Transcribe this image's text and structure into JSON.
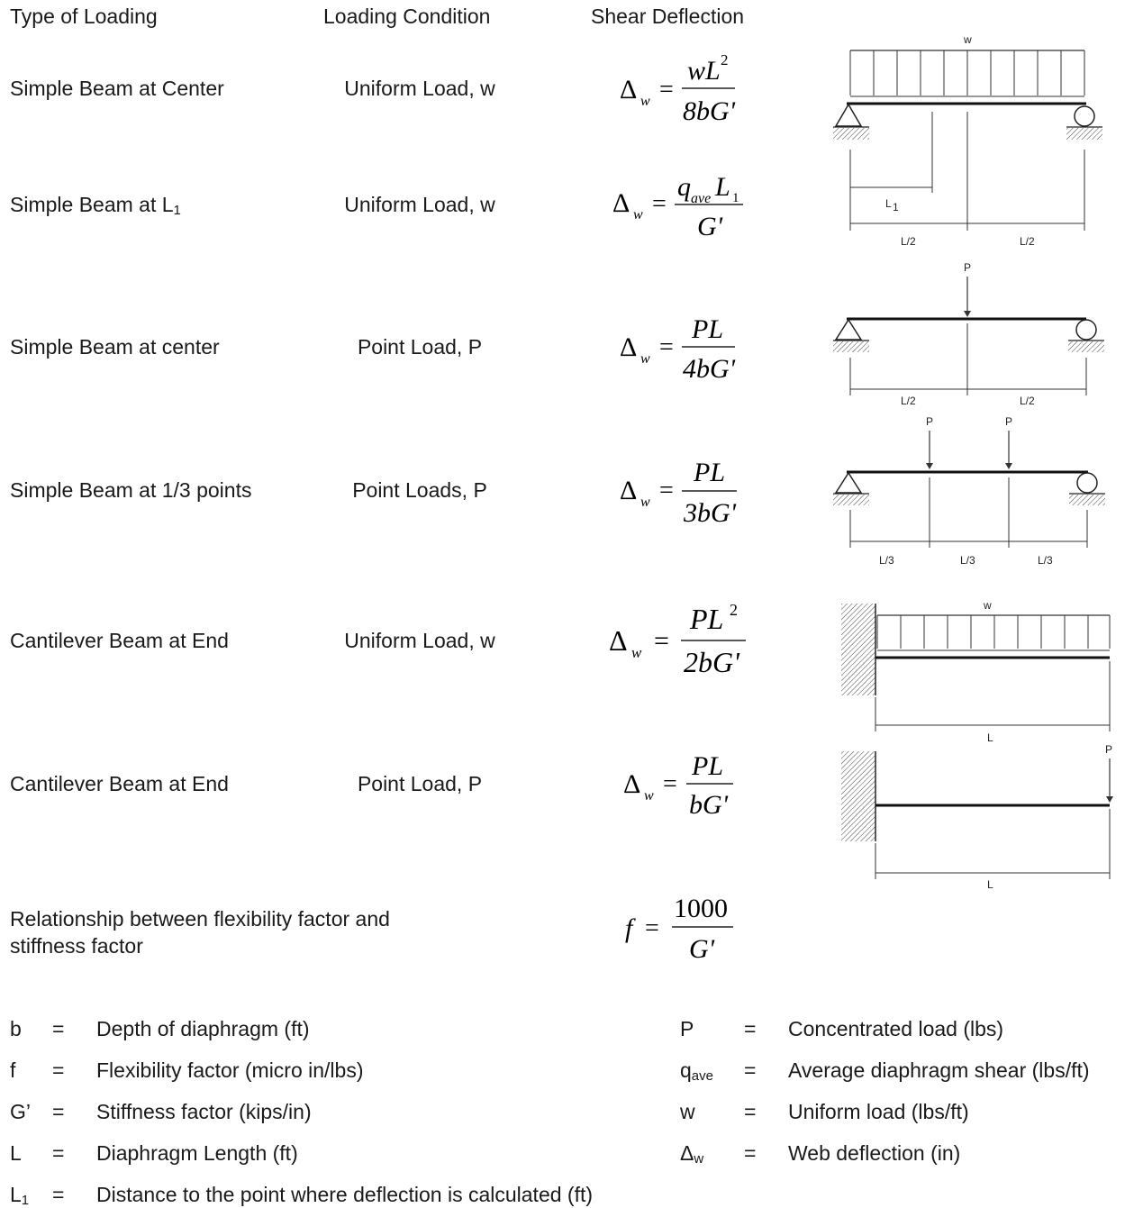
{
  "headers": {
    "type": "Type of Loading",
    "condition": "Loading Condition",
    "deflection": "Shear Deflection"
  },
  "rows": [
    {
      "type": "Simple Beam at Center",
      "condition": "Uniform Load, w",
      "formula": {
        "lhs": "Δ",
        "lhs_sub": "w",
        "num": "wL",
        "num_sup": "2",
        "den": "8bG'"
      }
    },
    {
      "type_main": "Simple Beam at L",
      "type_sub": "1",
      "condition": "Uniform Load, w",
      "formula": {
        "lhs": "Δ",
        "lhs_sub": "w",
        "num": "q",
        "num_sub": "ave",
        "num_tail": "L",
        "num_tail_sub": "1",
        "den": "G'"
      }
    },
    {
      "type": "Simple Beam at center",
      "condition": "Point Load, P",
      "formula": {
        "lhs": "Δ",
        "lhs_sub": "w",
        "num": "PL",
        "den": "4bG'"
      }
    },
    {
      "type": "Simple Beam at 1/3 points",
      "condition": "Point Loads, P",
      "formula": {
        "lhs": "Δ",
        "lhs_sub": "w",
        "num": "PL",
        "den": "3bG'"
      }
    },
    {
      "type": "Cantilever Beam at End",
      "condition": "Uniform Load, w",
      "formula": {
        "lhs": "Δ",
        "lhs_sub": "w",
        "num": "PL",
        "num_sup": "2",
        "den": "2bG'"
      }
    },
    {
      "type": "Cantilever Beam at End",
      "condition": "Point Load, P",
      "formula": {
        "lhs": "Δ",
        "lhs_sub": "w",
        "num": "PL",
        "den": "bG'"
      }
    }
  ],
  "relationship": {
    "line1": "Relationship between flexibility factor and",
    "line2": "stiffness factor",
    "formula": {
      "lhs": "f",
      "num": "1000",
      "den": "G'"
    }
  },
  "diagrams": {
    "d1": {
      "load": "w",
      "l1": "L",
      "l1_sub": "1",
      "half_left": "L/2",
      "half_right": "L/2"
    },
    "d2": {
      "load": "P",
      "half_left": "L/2",
      "half_right": "L/2"
    },
    "d3": {
      "load_left": "P",
      "load_right": "P",
      "third_1": "L/3",
      "third_2": "L/3",
      "third_3": "L/3"
    },
    "d4": {
      "load": "w",
      "span": "L"
    },
    "d5": {
      "load": "P",
      "span": "L"
    }
  },
  "legend": {
    "equals": "=",
    "left": [
      {
        "sym": "b",
        "desc": "Depth of diaphragm (ft)"
      },
      {
        "sym": "f",
        "desc": "Flexibility factor (micro in/lbs)"
      },
      {
        "sym": "G’",
        "desc": "Stiffness factor (kips/in)"
      },
      {
        "sym": "L",
        "desc": "Diaphragm Length (ft)"
      },
      {
        "sym": "L",
        "sym_sub": "1",
        "desc": "Distance to the point where deflection is calculated (ft)"
      }
    ],
    "right": [
      {
        "sym": "P",
        "desc": "Concentrated load (lbs)"
      },
      {
        "sym": "q",
        "sym_sub": "ave",
        "desc": "Average diaphragm shear (lbs/ft)"
      },
      {
        "sym": "w",
        "desc": "Uniform load (lbs/ft)"
      },
      {
        "sym": "Δ",
        "sym_sub": "w",
        "desc": "Web deflection (in)"
      }
    ]
  }
}
